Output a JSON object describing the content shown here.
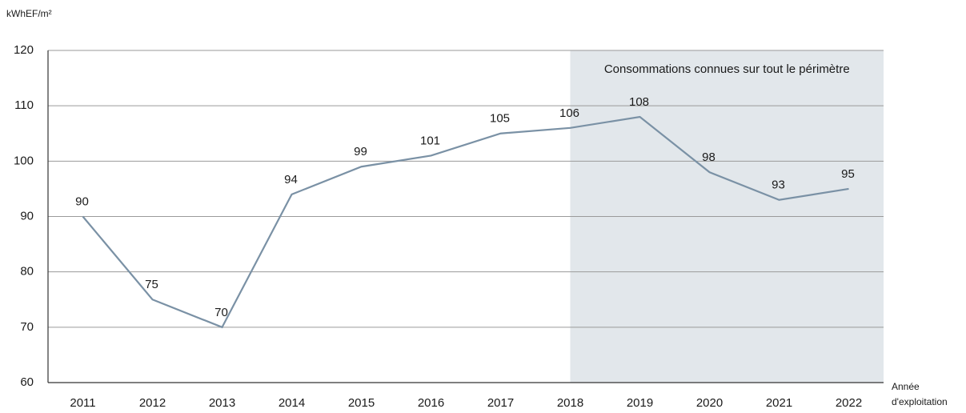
{
  "chart_data": {
    "type": "line",
    "ylabel": "kWhEF/m²",
    "xlabel": [
      "Année",
      "d'exploitation"
    ],
    "categories": [
      "2011",
      "2012",
      "2013",
      "2014",
      "2015",
      "2016",
      "2017",
      "2018",
      "2019",
      "2020",
      "2021",
      "2022"
    ],
    "series": [
      {
        "name": "kWhEF/m²",
        "color": "#7a91a5",
        "values": [
          90,
          75,
          70,
          94,
          99,
          101,
          105,
          106,
          108,
          98,
          93,
          95
        ]
      }
    ],
    "ylim": [
      60,
      120
    ],
    "yticks": [
      60,
      70,
      80,
      90,
      100,
      110,
      120
    ],
    "grid": true,
    "highlight": {
      "from": "2018",
      "color": "#e2e7eb",
      "label": "Consommations connues sur tout le périmètre"
    }
  }
}
